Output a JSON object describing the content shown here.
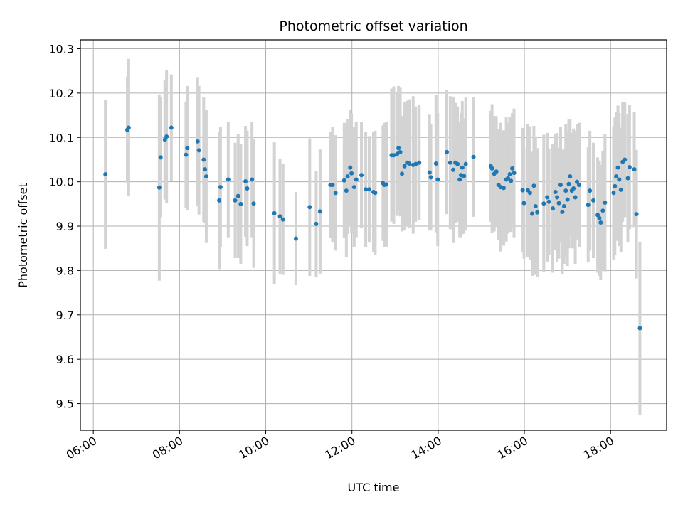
{
  "chart_data": {
    "type": "scatter",
    "title": "Photometric offset variation",
    "xlabel": "UTC time",
    "ylabel": "Photometric offset",
    "x_unit": "hours UTC",
    "xlim": [
      5.7,
      19.3
    ],
    "ylim": [
      9.44,
      10.32
    ],
    "xticks": [
      6,
      8,
      10,
      12,
      14,
      16,
      18
    ],
    "xtick_labels": [
      "06:00",
      "08:00",
      "10:00",
      "12:00",
      "14:00",
      "16:00",
      "18:00"
    ],
    "yticks": [
      9.5,
      9.6,
      9.7,
      9.8,
      9.9,
      10.0,
      10.1,
      10.2,
      10.3
    ],
    "ytick_labels": [
      "9.5",
      "9.6",
      "9.7",
      "9.8",
      "9.9",
      "10.0",
      "10.1",
      "10.2",
      "10.3"
    ],
    "grid": true,
    "colors": {
      "marker": "#1f77b4",
      "errorbar": "#d3d3d3",
      "grid": "#b0b0b0"
    },
    "points": [
      [
        6.28,
        10.017,
        0.168
      ],
      [
        6.79,
        10.117,
        0.12
      ],
      [
        6.82,
        10.122,
        0.155
      ],
      [
        7.53,
        9.987,
        0.21
      ],
      [
        7.56,
        10.055,
        0.135
      ],
      [
        7.66,
        10.095,
        0.135
      ],
      [
        7.7,
        10.102,
        0.15
      ],
      [
        7.81,
        10.122,
        0.12
      ],
      [
        8.15,
        10.061,
        0.12
      ],
      [
        8.18,
        10.076,
        0.14
      ],
      [
        8.42,
        10.091,
        0.145
      ],
      [
        8.45,
        10.071,
        0.145
      ],
      [
        8.56,
        10.05,
        0.14
      ],
      [
        8.59,
        10.028,
        0.12
      ],
      [
        8.62,
        10.012,
        0.15
      ],
      [
        8.92,
        9.958,
        0.155
      ],
      [
        8.95,
        9.988,
        0.135
      ],
      [
        9.13,
        10.005,
        0.13
      ],
      [
        9.29,
        9.958,
        0.13
      ],
      [
        9.36,
        9.968,
        0.14
      ],
      [
        9.42,
        9.95,
        0.135
      ],
      [
        9.53,
        10.001,
        0.125
      ],
      [
        9.57,
        9.985,
        0.13
      ],
      [
        9.68,
        10.005,
        0.13
      ],
      [
        9.72,
        9.951,
        0.145
      ],
      [
        10.2,
        9.929,
        0.16
      ],
      [
        10.33,
        9.922,
        0.13
      ],
      [
        10.4,
        9.915,
        0.125
      ],
      [
        10.7,
        9.872,
        0.105
      ],
      [
        11.02,
        9.943,
        0.155
      ],
      [
        11.17,
        9.905,
        0.12
      ],
      [
        11.26,
        9.933,
        0.14
      ],
      [
        11.5,
        9.993,
        0.12
      ],
      [
        11.55,
        9.993,
        0.13
      ],
      [
        11.62,
        9.975,
        0.13
      ],
      [
        11.82,
        10.003,
        0.13
      ],
      [
        11.87,
        9.98,
        0.15
      ],
      [
        11.9,
        10.012,
        0.13
      ],
      [
        11.96,
        10.032,
        0.13
      ],
      [
        11.99,
        10.019,
        0.135
      ],
      [
        12.05,
        9.988,
        0.135
      ],
      [
        12.1,
        10.005,
        0.13
      ],
      [
        12.22,
        10.015,
        0.12
      ],
      [
        12.32,
        9.983,
        0.13
      ],
      [
        12.4,
        9.983,
        0.12
      ],
      [
        12.5,
        9.977,
        0.135
      ],
      [
        12.54,
        9.975,
        0.14
      ],
      [
        12.72,
        9.997,
        0.13
      ],
      [
        12.75,
        9.993,
        0.14
      ],
      [
        12.8,
        9.994,
        0.14
      ],
      [
        12.92,
        10.06,
        0.15
      ],
      [
        12.97,
        10.06,
        0.155
      ],
      [
        13.05,
        10.063,
        0.14
      ],
      [
        13.08,
        10.076,
        0.14
      ],
      [
        13.12,
        10.067,
        0.145
      ],
      [
        13.16,
        10.018,
        0.13
      ],
      [
        13.22,
        10.035,
        0.145
      ],
      [
        13.28,
        10.043,
        0.14
      ],
      [
        13.33,
        10.041,
        0.145
      ],
      [
        13.42,
        10.038,
        0.155
      ],
      [
        13.48,
        10.04,
        0.13
      ],
      [
        13.56,
        10.043,
        0.13
      ],
      [
        13.8,
        10.021,
        0.13
      ],
      [
        13.83,
        10.01,
        0.12
      ],
      [
        13.95,
        10.041,
        0.155
      ],
      [
        13.99,
        10.005,
        0.15
      ],
      [
        14.2,
        10.067,
        0.14
      ],
      [
        14.28,
        10.043,
        0.15
      ],
      [
        14.35,
        10.027,
        0.165
      ],
      [
        14.4,
        10.043,
        0.135
      ],
      [
        14.45,
        10.04,
        0.13
      ],
      [
        14.5,
        10.005,
        0.13
      ],
      [
        14.53,
        10.015,
        0.14
      ],
      [
        14.56,
        10.032,
        0.15
      ],
      [
        14.6,
        10.013,
        0.13
      ],
      [
        14.64,
        10.04,
        0.15
      ],
      [
        14.82,
        10.056,
        0.135
      ],
      [
        15.22,
        10.035,
        0.125
      ],
      [
        15.25,
        10.03,
        0.145
      ],
      [
        15.3,
        10.018,
        0.13
      ],
      [
        15.35,
        10.023,
        0.125
      ],
      [
        15.4,
        9.993,
        0.125
      ],
      [
        15.45,
        9.988,
        0.145
      ],
      [
        15.52,
        9.986,
        0.13
      ],
      [
        15.58,
        10.005,
        0.14
      ],
      [
        15.62,
        10.008,
        0.125
      ],
      [
        15.66,
        10.017,
        0.13
      ],
      [
        15.69,
        10.002,
        0.115
      ],
      [
        15.72,
        10.03,
        0.125
      ],
      [
        15.76,
        10.02,
        0.145
      ],
      [
        15.96,
        9.981,
        0.14
      ],
      [
        15.99,
        9.952,
        0.125
      ],
      [
        16.08,
        9.981,
        0.15
      ],
      [
        16.13,
        9.975,
        0.15
      ],
      [
        16.18,
        9.928,
        0.14
      ],
      [
        16.22,
        9.991,
        0.135
      ],
      [
        16.26,
        9.945,
        0.155
      ],
      [
        16.3,
        9.931,
        0.145
      ],
      [
        16.45,
        9.951,
        0.155
      ],
      [
        16.53,
        9.965,
        0.145
      ],
      [
        16.57,
        9.955,
        0.12
      ],
      [
        16.66,
        9.94,
        0.145
      ],
      [
        16.72,
        9.977,
        0.13
      ],
      [
        16.76,
        9.965,
        0.145
      ],
      [
        16.8,
        9.952,
        0.125
      ],
      [
        16.84,
        9.993,
        0.13
      ],
      [
        16.88,
        9.932,
        0.14
      ],
      [
        16.92,
        9.945,
        0.13
      ],
      [
        16.96,
        9.98,
        0.15
      ],
      [
        17.0,
        9.96,
        0.15
      ],
      [
        17.03,
        9.995,
        0.145
      ],
      [
        17.06,
        10.012,
        0.13
      ],
      [
        17.1,
        9.98,
        0.13
      ],
      [
        17.14,
        9.985,
        0.135
      ],
      [
        17.18,
        9.965,
        0.15
      ],
      [
        17.22,
        10.0,
        0.13
      ],
      [
        17.27,
        9.993,
        0.14
      ],
      [
        17.48,
        9.948,
        0.13
      ],
      [
        17.52,
        9.98,
        0.135
      ],
      [
        17.6,
        9.958,
        0.13
      ],
      [
        17.7,
        9.925,
        0.13
      ],
      [
        17.74,
        9.918,
        0.13
      ],
      [
        17.77,
        9.908,
        0.13
      ],
      [
        17.82,
        9.935,
        0.135
      ],
      [
        17.87,
        9.953,
        0.155
      ],
      [
        18.07,
        9.975,
        0.15
      ],
      [
        18.1,
        9.99,
        0.155
      ],
      [
        18.13,
        10.012,
        0.145
      ],
      [
        18.17,
        10.032,
        0.14
      ],
      [
        18.2,
        10.005,
        0.15
      ],
      [
        18.24,
        9.982,
        0.14
      ],
      [
        18.28,
        10.045,
        0.135
      ],
      [
        18.33,
        10.05,
        0.13
      ],
      [
        18.4,
        10.008,
        0.145
      ],
      [
        18.44,
        10.033,
        0.14
      ],
      [
        18.55,
        10.028,
        0.13
      ],
      [
        18.6,
        9.927,
        0.145
      ],
      [
        18.68,
        9.67,
        0.195
      ]
    ]
  }
}
